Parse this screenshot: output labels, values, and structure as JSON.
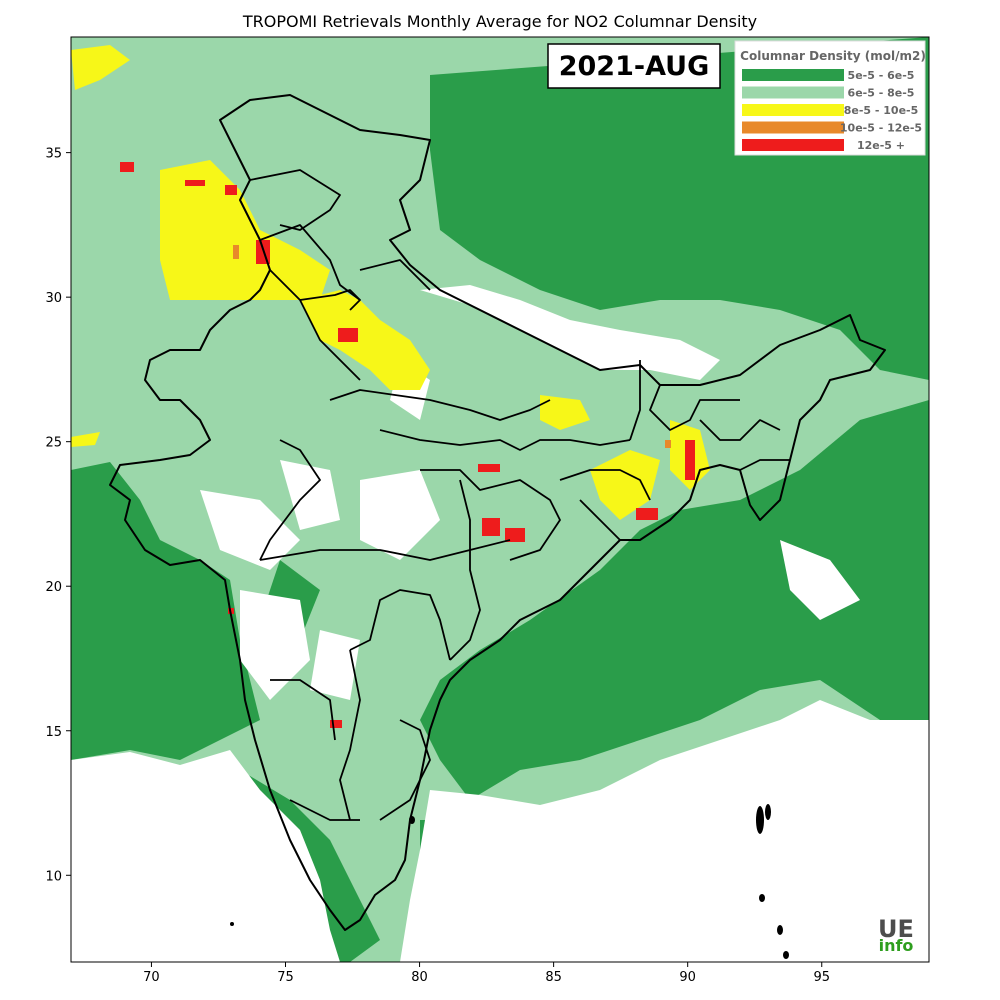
{
  "chart": {
    "title": "TROPOMI Retrievals Monthly Average for NO2 Columnar Density",
    "date_label": "2021-AUG",
    "legend_title": "Columnar Density (mol/m2)",
    "legend": [
      {
        "label": "5e-5 - 6e-5",
        "color": "#2a9d4a"
      },
      {
        "label": "6e-5 - 8e-5",
        "color": "#9bd7aa"
      },
      {
        "label": "8e-5 - 10e-5",
        "color": "#f7f718"
      },
      {
        "label": "10e-5 - 12e-5",
        "color": "#e8892a"
      },
      {
        "label": "12e-5 +",
        "color": "#ee1c1c"
      }
    ],
    "logo_top": "UE",
    "logo_bottom": "info",
    "x_ticks": [
      "70",
      "75",
      "80",
      "85",
      "90",
      "95"
    ],
    "y_ticks": [
      "10",
      "15",
      "20",
      "25",
      "30",
      "35"
    ]
  },
  "chart_data": {
    "type": "heatmap",
    "title": "TROPOMI Retrievals Monthly Average for NO2 Columnar Density",
    "xlim": [
      67,
      99
    ],
    "ylim": [
      7,
      39
    ],
    "x_ticks": [
      70,
      75,
      80,
      85,
      90,
      95
    ],
    "y_ticks": [
      10,
      15,
      20,
      25,
      30,
      35
    ],
    "legend_placement": "top-right",
    "classes": [
      "5e-5 - 6e-5",
      "6e-5 - 8e-5",
      "8e-5 - 10e-5",
      "10e-5 - 12e-5",
      "12e-5 +"
    ]
  }
}
